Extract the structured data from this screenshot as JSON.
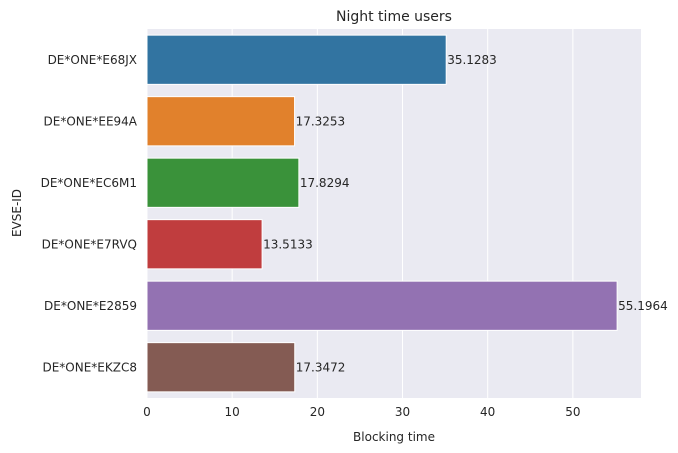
{
  "chart_data": {
    "type": "bar",
    "orientation": "horizontal",
    "title": "Night time users",
    "xlabel": "Blocking time",
    "ylabel": "EVSE-ID",
    "categories": [
      "DE*ONE*E68JX",
      "DE*ONE*EE94A",
      "DE*ONE*EC6M1",
      "DE*ONE*E7RVQ",
      "DE*ONE*E2859",
      "DE*ONE*EKZC8"
    ],
    "values": [
      35.1283,
      17.3253,
      17.8294,
      13.5133,
      55.1964,
      17.3472
    ],
    "value_labels": [
      "35.1283",
      "17.3253",
      "17.8294",
      "13.5133",
      "55.1964",
      "17.3472"
    ],
    "colors": [
      "#3274a1",
      "#e1812c",
      "#3a923a",
      "#c03d3e",
      "#9372b2",
      "#845b53"
    ],
    "xlim": [
      0,
      58
    ],
    "xticks": [
      0,
      10,
      20,
      30,
      40,
      50
    ],
    "xtick_labels": [
      "0",
      "10",
      "20",
      "30",
      "40",
      "50"
    ],
    "grid": true,
    "background": "#eaeaf2"
  }
}
